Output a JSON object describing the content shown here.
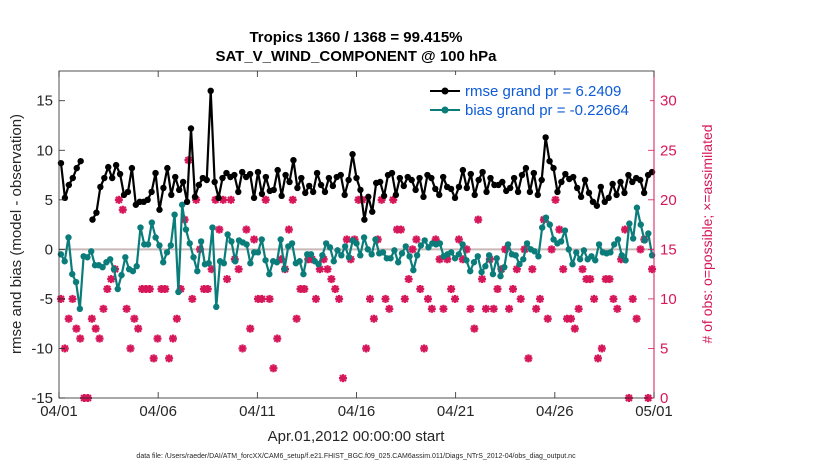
{
  "chart_data": {
    "type": "line",
    "title": "Tropics 1360 / 1368 = 99.415%",
    "subtitle": "SAT_V_WIND_COMPONENT @ 100 hPa",
    "xlabel": "Apr.01,2012 00:00:00 start",
    "ylabel": "rmse and bias (model - observation)",
    "ylabel_right": "# of obs: o=possible; ×=assimilated",
    "footer": "data file: /Users/raeder/DAI/ATM_forcXX/CAM6_setup/f.e21.FHIST_BGC.f09_025.CAM6assim.011/Diags_NTrS_2012-04/obs_diag_output.nc",
    "xlim": [
      0,
      30
    ],
    "ylim": [
      -15,
      18
    ],
    "ylim_right": [
      0,
      33
    ],
    "x_tick_labels": [
      "04/01",
      "04/06",
      "04/11",
      "04/16",
      "04/21",
      "04/26",
      "05/01"
    ],
    "y_ticks": [
      -15,
      -10,
      -5,
      0,
      5,
      10,
      15
    ],
    "y_ticks_right": [
      0,
      5,
      10,
      15,
      20,
      25,
      30
    ],
    "zero_line": 0,
    "series": [
      {
        "name": "rmse grand pr = 6.2409",
        "color": "#000000",
        "axis": "left",
        "values": [
          8.7,
          5.2,
          6.5,
          7.2,
          8.2,
          8.9,
          null,
          null,
          3.0,
          3.7,
          6.3,
          7.2,
          8.3,
          7.2,
          8.5,
          7.6,
          5.5,
          5.8,
          8.2,
          4.5,
          4.8,
          4.8,
          5.0,
          5.8,
          7.7,
          4.0,
          6.2,
          8.2,
          5.5,
          7.3,
          6.0,
          6.8,
          4.8,
          12.2,
          5.3,
          6.5,
          7.2,
          7.0,
          16.0,
          6.8,
          5.2,
          7.2,
          7.7,
          7.3,
          7.5,
          5.8,
          7.8,
          7.3,
          7.6,
          5.2,
          7.8,
          5.6,
          7.3,
          5.9,
          6.0,
          8.0,
          5.4,
          7.5,
          6.8,
          9.0,
          6.2,
          7.2,
          5.7,
          6.4,
          5.8,
          7.7,
          6.5,
          5.8,
          7.2,
          6.4,
          7.3,
          7.5,
          5.5,
          7.0,
          9.6,
          7.2,
          6.0,
          3.0,
          5.3,
          3.8,
          6.7,
          6.8,
          5.4,
          7.5,
          7.7,
          5.5,
          7.2,
          6.4,
          7.3,
          7.0,
          6.0,
          7.2,
          5.3,
          7.5,
          7.2,
          6.1,
          5.5,
          7.3,
          6.3,
          6.1,
          5.2,
          6.3,
          8.0,
          6.2,
          7.6,
          5.5,
          7.0,
          7.8,
          5.8,
          7.2,
          6.5,
          6.5,
          6.8,
          5.9,
          6.2,
          7.2,
          5.8,
          7.5,
          8.2,
          5.8,
          7.7,
          5.5,
          7.0,
          11.3,
          8.9,
          8.2,
          5.8,
          6.8,
          7.6,
          7.1,
          7.3,
          6.2,
          5.3,
          7.0,
          5.7,
          4.8,
          4.4,
          6.3,
          4.8,
          5.2,
          6.6,
          5.5,
          6.8,
          5.7,
          7.5,
          6.8,
          7.2,
          7.0,
          5.7,
          7.5,
          7.8
        ]
      },
      {
        "name": "bias grand pr = -0.22664",
        "color": "#0a7d7a",
        "axis": "left",
        "values": [
          -0.5,
          -1.2,
          1.2,
          -2.5,
          -3.3,
          -6.0,
          -0.7,
          -0.8,
          -0.2,
          -1.6,
          -1.6,
          -1.8,
          -1.3,
          -1.0,
          -2.0,
          -4.0,
          -2.6,
          -0.8,
          -2.0,
          -2.2,
          -1.7,
          2.2,
          0.5,
          0.5,
          2.7,
          1.2,
          0.4,
          -1.3,
          -0.3,
          0.4,
          3.5,
          -4.3,
          4.5,
          2.0,
          0.6,
          -0.8,
          -2.2,
          0.8,
          -1.5,
          -1.4,
          2.2,
          -5.8,
          -1.2,
          -1.4,
          1.5,
          0.8,
          -1.2,
          0.9,
          0.7,
          0.5,
          -1.4,
          -0.3,
          -0.3,
          1.0,
          -1.1,
          -2.5,
          -1.2,
          -1.3,
          1.0,
          -2.0,
          0.3,
          0.6,
          -1.4,
          -1.2,
          -2.5,
          -0.5,
          -0.5,
          -1.2,
          -1.5,
          -0.6,
          0.6,
          0.2,
          -1.2,
          -0.1,
          -0.6,
          0.3,
          -0.8,
          0.9,
          0.6,
          -0.6,
          1.2,
          0.0,
          -0.5,
          1.0,
          -0.4,
          -0.3,
          -0.9,
          -0.9,
          -0.1,
          -1.3,
          -0.4,
          0.3,
          -0.7,
          -2.1,
          -0.6,
          0.4,
          0.9,
          0.2,
          0.6,
          0.5,
          0.6,
          -0.7,
          -0.5,
          -0.3,
          -0.9,
          -0.5,
          0.5,
          -1.1,
          -2.2,
          -1.3,
          -0.7,
          -2.3,
          -1.7,
          -0.6,
          -2.5,
          -0.9,
          -2.7,
          -1.8,
          0.5,
          -0.5,
          -0.6,
          -1.5,
          -1.0,
          0.6,
          0.0,
          -0.2,
          -0.7,
          2.2,
          3.2,
          2.5,
          1.0,
          0.6,
          0.8,
          1.9,
          0.0,
          -1.5,
          -0.3,
          -1.0,
          -0.1,
          -1.0,
          -0.7,
          -1.1,
          0.5,
          -0.3,
          -0.4,
          -0.3,
          0.5,
          1.0,
          -0.6,
          -1.1,
          2.6,
          1.1,
          4.2,
          2.5,
          0.9,
          1.6,
          -0.6
        ]
      }
    ],
    "obs_assimilated_count": [
      10,
      5,
      8,
      10,
      7,
      6,
      0,
      0,
      8,
      7,
      6,
      9,
      11,
      12,
      13,
      20,
      19,
      9,
      5,
      8,
      7,
      11,
      11,
      11,
      4,
      6,
      11,
      11,
      4,
      6,
      8,
      11,
      18,
      24,
      10,
      20,
      15,
      11,
      11,
      13,
      20,
      17,
      20,
      12,
      20,
      14,
      13,
      5,
      17,
      7,
      16,
      10,
      10,
      20,
      10,
      3,
      6,
      14,
      13,
      17,
      20,
      8,
      11,
      11,
      14,
      14,
      10,
      13,
      14,
      13,
      12,
      11,
      10,
      2,
      16,
      14,
      16,
      20,
      20,
      5,
      10,
      8,
      16,
      20,
      10,
      9,
      20,
      17,
      17,
      10,
      12,
      15,
      16,
      11,
      5,
      10,
      9,
      16,
      14,
      9,
      14,
      11,
      10,
      16,
      14,
      15,
      9,
      7,
      18,
      12,
      9,
      14,
      9,
      11,
      13,
      15,
      9,
      11,
      13,
      10,
      15,
      4,
      13,
      9,
      10,
      18,
      8,
      15,
      20,
      17,
      13,
      8,
      8,
      7,
      9,
      13,
      12,
      12,
      10,
      4,
      5,
      12,
      12,
      10,
      9,
      14,
      17,
      0,
      10,
      8,
      15,
      16,
      0,
      13
    ]
  },
  "legend": {
    "rmse_label": "rmse grand pr = 6.2409",
    "bias_label": "bias grand pr = -0.22664"
  }
}
